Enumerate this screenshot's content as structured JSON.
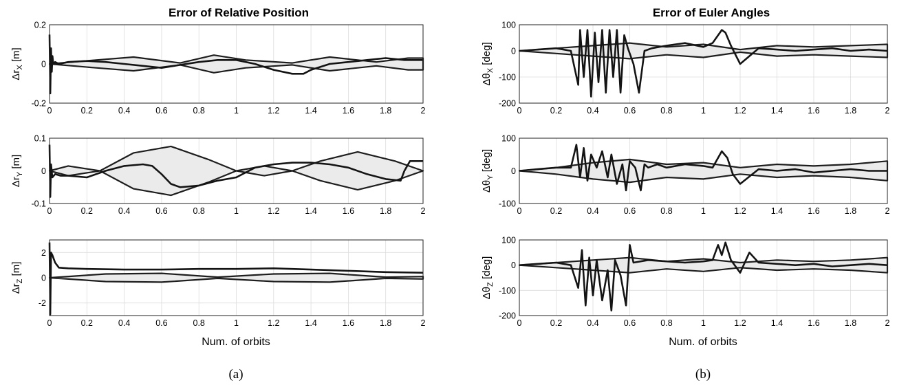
{
  "panels": [
    {
      "title": "Error of Relative Position",
      "xlabel": "Num. of orbits",
      "caption": "(a)",
      "subplots": [
        {
          "id": "rx",
          "ylabel_base": "Δr",
          "ylabel_sub": "X",
          "ylabel_unit": " [m]"
        },
        {
          "id": "ry",
          "ylabel_base": "Δr",
          "ylabel_sub": "Y",
          "ylabel_unit": " [m]"
        },
        {
          "id": "rz",
          "ylabel_base": "Δr",
          "ylabel_sub": "Z",
          "ylabel_unit": " [m]"
        }
      ]
    },
    {
      "title": "Error of Euler Angles",
      "xlabel": "Num. of orbits",
      "caption": "(b)",
      "subplots": [
        {
          "id": "tx",
          "ylabel_base": "Δθ",
          "ylabel_sub": "X",
          "ylabel_unit": " [deg]"
        },
        {
          "id": "ty",
          "ylabel_base": "Δθ",
          "ylabel_sub": "Y",
          "ylabel_unit": " [deg]"
        },
        {
          "id": "tz",
          "ylabel_base": "Δθ",
          "ylabel_sub": "Z",
          "ylabel_unit": " [deg]"
        }
      ]
    }
  ],
  "chart_data": [
    {
      "type": "line",
      "id": "rx",
      "grid": true,
      "xlim": [
        0,
        2
      ],
      "xticks": [
        0,
        0.2,
        0.4,
        0.6,
        0.8,
        1,
        1.2,
        1.4,
        1.6,
        1.8,
        2
      ],
      "ylim": [
        -0.2,
        0.2
      ],
      "yticks": [
        -0.2,
        0,
        0.2
      ],
      "ytick_labels": [
        "-0.2",
        "0",
        "0.2"
      ],
      "band": {
        "x": [
          0,
          0.25,
          0.45,
          0.7,
          0.88,
          1.05,
          1.3,
          1.5,
          1.75,
          1.92,
          2
        ],
        "upper": [
          0,
          0.02,
          0.035,
          0.005,
          0.045,
          0.02,
          0.005,
          0.035,
          0.01,
          0.03,
          0.03
        ],
        "lower": [
          0,
          -0.02,
          -0.035,
          -0.005,
          -0.045,
          -0.02,
          -0.005,
          -0.035,
          -0.01,
          -0.03,
          -0.03
        ]
      },
      "estimate": {
        "x": [
          0,
          0.004,
          0.008,
          0.012,
          0.016,
          0.02,
          0.03,
          0.05,
          0.1,
          0.2,
          0.3,
          0.4,
          0.5,
          0.6,
          0.7,
          0.8,
          0.9,
          1.0,
          1.1,
          1.2,
          1.3,
          1.36,
          1.4,
          1.5,
          1.6,
          1.7,
          1.8,
          1.9,
          2.0
        ],
        "y": [
          0.15,
          -0.15,
          0.08,
          -0.04,
          0.04,
          0.0,
          0.01,
          0.0,
          0.01,
          0.015,
          0.01,
          0.0,
          -0.01,
          -0.02,
          -0.005,
          0.01,
          0.02,
          0.02,
          0.0,
          -0.03,
          -0.05,
          -0.05,
          -0.03,
          0.0,
          0.01,
          0.02,
          0.03,
          0.02,
          0.02
        ]
      }
    },
    {
      "type": "line",
      "id": "ry",
      "grid": true,
      "xlim": [
        0,
        2
      ],
      "xticks": [
        0,
        0.2,
        0.4,
        0.6,
        0.8,
        1,
        1.2,
        1.4,
        1.6,
        1.8,
        2
      ],
      "ylim": [
        -0.1,
        0.1
      ],
      "yticks": [
        -0.1,
        0,
        0.1
      ],
      "ytick_labels": [
        "-0.1",
        "0",
        "0.1"
      ],
      "band": {
        "x": [
          0,
          0.1,
          0.27,
          0.45,
          0.65,
          0.85,
          1.0,
          1.15,
          1.3,
          1.45,
          1.65,
          1.85,
          2.0
        ],
        "upper": [
          0,
          0.015,
          0.0,
          0.055,
          0.075,
          0.035,
          0.0,
          0.015,
          0.0,
          0.03,
          0.058,
          0.03,
          0.0
        ],
        "lower": [
          0,
          -0.015,
          0.0,
          -0.055,
          -0.075,
          -0.035,
          0.0,
          -0.015,
          0.0,
          -0.03,
          -0.058,
          -0.03,
          0.0
        ]
      },
      "estimate": {
        "x": [
          0,
          0.004,
          0.008,
          0.015,
          0.03,
          0.06,
          0.1,
          0.2,
          0.3,
          0.4,
          0.5,
          0.55,
          0.6,
          0.65,
          0.7,
          0.8,
          0.9,
          1.0,
          1.1,
          1.2,
          1.3,
          1.4,
          1.5,
          1.6,
          1.7,
          1.8,
          1.88,
          1.9,
          1.93,
          2.0
        ],
        "y": [
          0.08,
          -0.08,
          0.02,
          -0.02,
          -0.01,
          -0.015,
          -0.015,
          -0.02,
          0.0,
          0.015,
          0.02,
          0.015,
          -0.01,
          -0.04,
          -0.05,
          -0.045,
          -0.03,
          -0.02,
          0.01,
          0.02,
          0.025,
          0.025,
          0.02,
          0.01,
          -0.01,
          -0.025,
          -0.03,
          0.0,
          0.03,
          0.03
        ]
      }
    },
    {
      "type": "line",
      "id": "rz",
      "grid": true,
      "xlim": [
        0,
        2
      ],
      "xticks": [
        0,
        0.2,
        0.4,
        0.6,
        0.8,
        1,
        1.2,
        1.4,
        1.6,
        1.8,
        2
      ],
      "ylim": [
        -3,
        3
      ],
      "yticks": [
        -2,
        0,
        2
      ],
      "ytick_labels": [
        "-2",
        "0",
        "2"
      ],
      "band": {
        "x": [
          0,
          0.3,
          0.6,
          0.9,
          1.2,
          1.5,
          1.8,
          2.0
        ],
        "upper": [
          0,
          0.3,
          0.35,
          0.05,
          0.3,
          0.35,
          0.05,
          0.1
        ],
        "lower": [
          0,
          -0.3,
          -0.35,
          -0.05,
          -0.3,
          -0.35,
          -0.05,
          -0.1
        ]
      },
      "estimate": {
        "x": [
          0,
          0.004,
          0.008,
          0.015,
          0.03,
          0.05,
          0.1,
          0.2,
          0.4,
          0.6,
          0.8,
          1.0,
          1.2,
          1.4,
          1.6,
          1.8,
          2.0
        ],
        "y": [
          2.8,
          -2.9,
          2.0,
          1.8,
          1.2,
          0.8,
          0.75,
          0.7,
          0.65,
          0.65,
          0.7,
          0.7,
          0.75,
          0.65,
          0.55,
          0.45,
          0.4
        ]
      }
    },
    {
      "type": "line",
      "id": "tx",
      "grid": true,
      "xlim": [
        0,
        2
      ],
      "xticks": [
        0,
        0.2,
        0.4,
        0.6,
        0.8,
        1,
        1.2,
        1.4,
        1.6,
        1.8,
        2
      ],
      "ylim": [
        -200,
        100
      ],
      "yticks": [
        -200,
        -100,
        0,
        100
      ],
      "ytick_labels": [
        "-200",
        "-100",
        "0",
        "100"
      ],
      "band": {
        "x": [
          0,
          0.2,
          0.4,
          0.6,
          0.8,
          1.0,
          1.2,
          1.4,
          1.6,
          1.8,
          2.0
        ],
        "upper": [
          0,
          10,
          20,
          30,
          15,
          25,
          5,
          20,
          15,
          20,
          25
        ],
        "lower": [
          0,
          -10,
          -20,
          -30,
          -15,
          -25,
          -5,
          -20,
          -15,
          -20,
          -25
        ]
      },
      "estimate": {
        "x": [
          0,
          0.1,
          0.2,
          0.28,
          0.32,
          0.33,
          0.35,
          0.37,
          0.39,
          0.41,
          0.43,
          0.45,
          0.47,
          0.49,
          0.51,
          0.53,
          0.55,
          0.57,
          0.59,
          0.62,
          0.65,
          0.68,
          0.72,
          0.8,
          0.9,
          1.0,
          1.05,
          1.1,
          1.12,
          1.15,
          1.2,
          1.3,
          1.4,
          1.5,
          1.6,
          1.7,
          1.8,
          1.9,
          2.0
        ],
        "y": [
          0,
          5,
          10,
          0,
          -130,
          80,
          -100,
          80,
          -175,
          70,
          -120,
          80,
          -160,
          80,
          -100,
          80,
          -160,
          60,
          10,
          -50,
          -160,
          0,
          10,
          20,
          30,
          15,
          30,
          80,
          70,
          20,
          -50,
          10,
          5,
          0,
          5,
          10,
          0,
          5,
          0
        ]
      }
    },
    {
      "type": "line",
      "id": "ty",
      "grid": true,
      "xlim": [
        0,
        2
      ],
      "xticks": [
        0,
        0.2,
        0.4,
        0.6,
        0.8,
        1,
        1.2,
        1.4,
        1.6,
        1.8,
        2
      ],
      "ylim": [
        -100,
        100
      ],
      "yticks": [
        -100,
        0,
        100
      ],
      "ytick_labels": [
        "-100",
        "0",
        "100"
      ],
      "band": {
        "x": [
          0,
          0.2,
          0.4,
          0.6,
          0.8,
          1.0,
          1.2,
          1.4,
          1.6,
          1.8,
          2.0
        ],
        "upper": [
          0,
          10,
          25,
          35,
          20,
          25,
          10,
          20,
          15,
          20,
          30
        ],
        "lower": [
          0,
          -10,
          -25,
          -35,
          -20,
          -25,
          -10,
          -20,
          -15,
          -20,
          -30
        ]
      },
      "estimate": {
        "x": [
          0,
          0.1,
          0.2,
          0.28,
          0.31,
          0.33,
          0.35,
          0.37,
          0.39,
          0.42,
          0.45,
          0.48,
          0.5,
          0.53,
          0.56,
          0.58,
          0.6,
          0.63,
          0.66,
          0.68,
          0.7,
          0.75,
          0.8,
          0.9,
          1.0,
          1.05,
          1.1,
          1.13,
          1.16,
          1.2,
          1.3,
          1.4,
          1.5,
          1.6,
          1.7,
          1.8,
          1.9,
          2.0
        ],
        "y": [
          0,
          5,
          10,
          10,
          80,
          -20,
          70,
          -30,
          50,
          10,
          60,
          -20,
          50,
          -40,
          20,
          -60,
          30,
          10,
          -60,
          20,
          10,
          20,
          10,
          20,
          15,
          10,
          60,
          40,
          -10,
          -40,
          5,
          0,
          5,
          -5,
          0,
          5,
          0,
          0
        ]
      }
    },
    {
      "type": "line",
      "id": "tz",
      "grid": true,
      "xlim": [
        0,
        2
      ],
      "xticks": [
        0,
        0.2,
        0.4,
        0.6,
        0.8,
        1,
        1.2,
        1.4,
        1.6,
        1.8,
        2
      ],
      "ylim": [
        -200,
        100
      ],
      "yticks": [
        -200,
        -100,
        0,
        100
      ],
      "ytick_labels": [
        "-200",
        "-100",
        "0",
        "100"
      ],
      "band": {
        "x": [
          0,
          0.2,
          0.4,
          0.6,
          0.8,
          1.0,
          1.2,
          1.4,
          1.6,
          1.8,
          2.0
        ],
        "upper": [
          0,
          10,
          20,
          30,
          15,
          25,
          10,
          20,
          15,
          20,
          30
        ],
        "lower": [
          0,
          -10,
          -20,
          -30,
          -15,
          -25,
          -10,
          -20,
          -15,
          -20,
          -30
        ]
      },
      "estimate": {
        "x": [
          0,
          0.1,
          0.2,
          0.28,
          0.32,
          0.34,
          0.36,
          0.38,
          0.4,
          0.42,
          0.45,
          0.48,
          0.5,
          0.52,
          0.55,
          0.58,
          0.6,
          0.62,
          0.7,
          0.8,
          0.9,
          1.0,
          1.05,
          1.08,
          1.1,
          1.12,
          1.15,
          1.2,
          1.25,
          1.3,
          1.4,
          1.5,
          1.6,
          1.7,
          1.8,
          1.9,
          2.0
        ],
        "y": [
          0,
          5,
          10,
          0,
          -90,
          60,
          -160,
          30,
          -120,
          20,
          -140,
          -20,
          -180,
          20,
          -40,
          -160,
          80,
          10,
          20,
          15,
          10,
          15,
          20,
          80,
          40,
          90,
          20,
          -30,
          50,
          10,
          5,
          0,
          5,
          -5,
          0,
          5,
          0
        ]
      }
    }
  ]
}
